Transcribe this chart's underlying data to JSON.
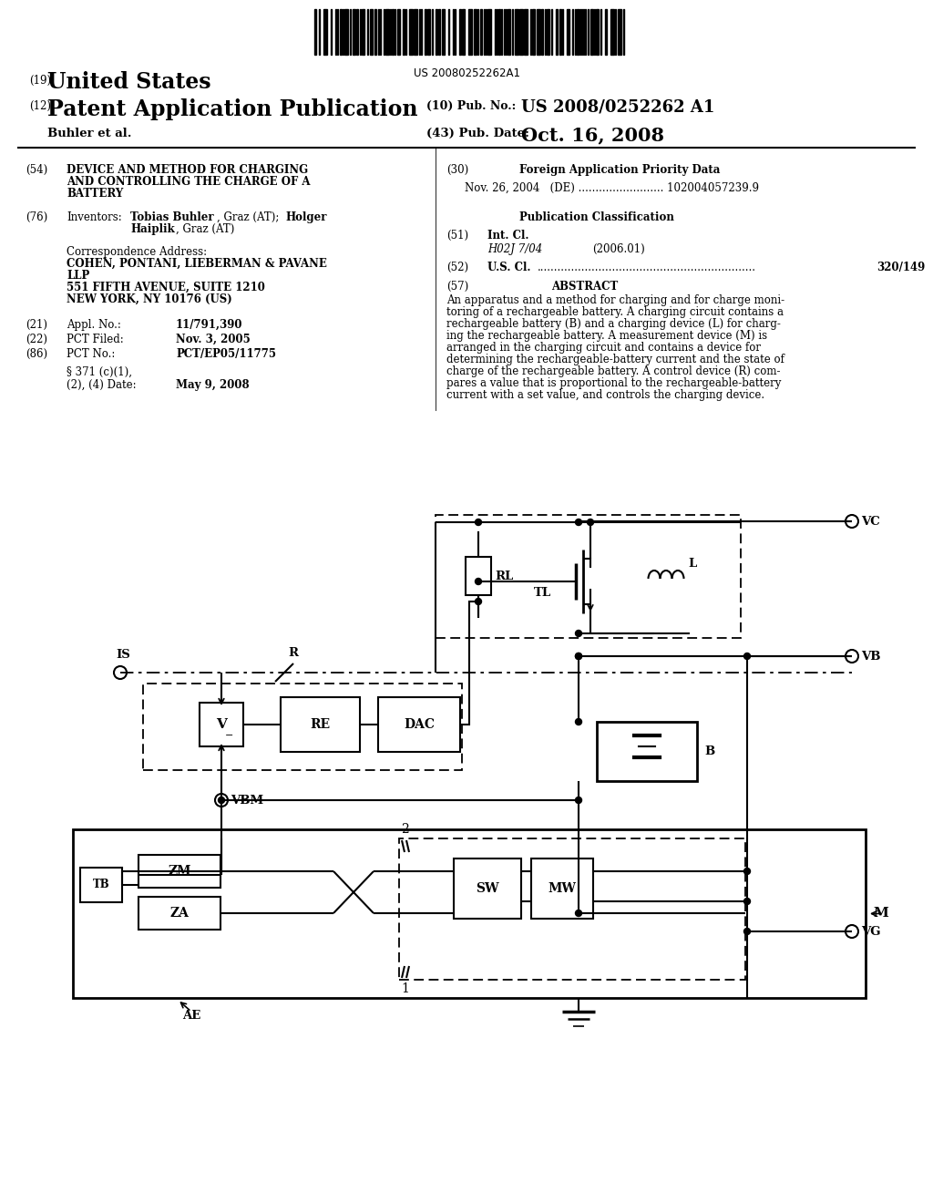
{
  "bg_color": "#ffffff",
  "barcode_text": "US 20080252262A1",
  "header_19": "(19)",
  "header_19_text": "United States",
  "header_12": "(12)",
  "header_12_text": "Patent Application Publication",
  "pub_no_label": "(10) Pub. No.:",
  "pub_no": "US 2008/0252262 A1",
  "author": "Buhler et al.",
  "pub_date_label": "(43) Pub. Date:",
  "pub_date": "Oct. 16, 2008",
  "field54_label": "(54)",
  "field54_text": "DEVICE AND METHOD FOR CHARGING\nAND CONTROLLING THE CHARGE OF A\nBATTERY",
  "field30_label": "(30)",
  "field30_title": "Foreign Application Priority Data",
  "field30_entry": "Nov. 26, 2004   (DE) ......................... 102004057239.9",
  "field76_label": "(76)",
  "field76_title": "Inventors:",
  "field76_text": "Tobias Buhler, Graz (AT); Holger\nHaiplik, Graz (AT)",
  "correspondence_title": "Correspondence Address:",
  "correspondence_body": "COHEN, PONTANI, LIEBERMAN & PAVANE\nLLP\n551 FIFTH AVENUE, SUITE 1210\nNEW YORK, NY 10176 (US)",
  "field21_label": "(21)",
  "field21_title": "Appl. No.:",
  "field21_value": "11/791,390",
  "field22_label": "(22)",
  "field22_title": "PCT Filed:",
  "field22_value": "Nov. 3, 2005",
  "field86_label": "(86)",
  "field86_title": "PCT No.:",
  "field86_value": "PCT/EP05/11775",
  "field86b": "§ 371 (c)(1),\n(2), (4) Date:",
  "field86b_value": "May 9, 2008",
  "pub_class_title": "Publication Classification",
  "field51_label": "(51)",
  "field51_title": "Int. Cl.",
  "field51_class": "H02J 7/04",
  "field51_date": "(2006.01)",
  "field52_label": "(52)",
  "field52_title": "U.S. Cl.",
  "field52_dots": "................................................................",
  "field52_value": "320/149",
  "field57_label": "(57)",
  "field57_title": "ABSTRACT",
  "abstract_text": "An apparatus and a method for charging and for charge moni-\ntoring of a rechargeable battery. A charging circuit contains a\nrechargeable battery (B) and a charging device (L) for charg-\ning the rechargeable battery. A measurement device (M) is\narranged in the charging circuit and contains a device for\ndetermining the rechargeable-battery current and the state of\ncharge of the rechargeable battery. A control device (R) com-\npares a value that is proportional to the rechargeable-battery\ncurrent with a set value, and controls the charging device."
}
